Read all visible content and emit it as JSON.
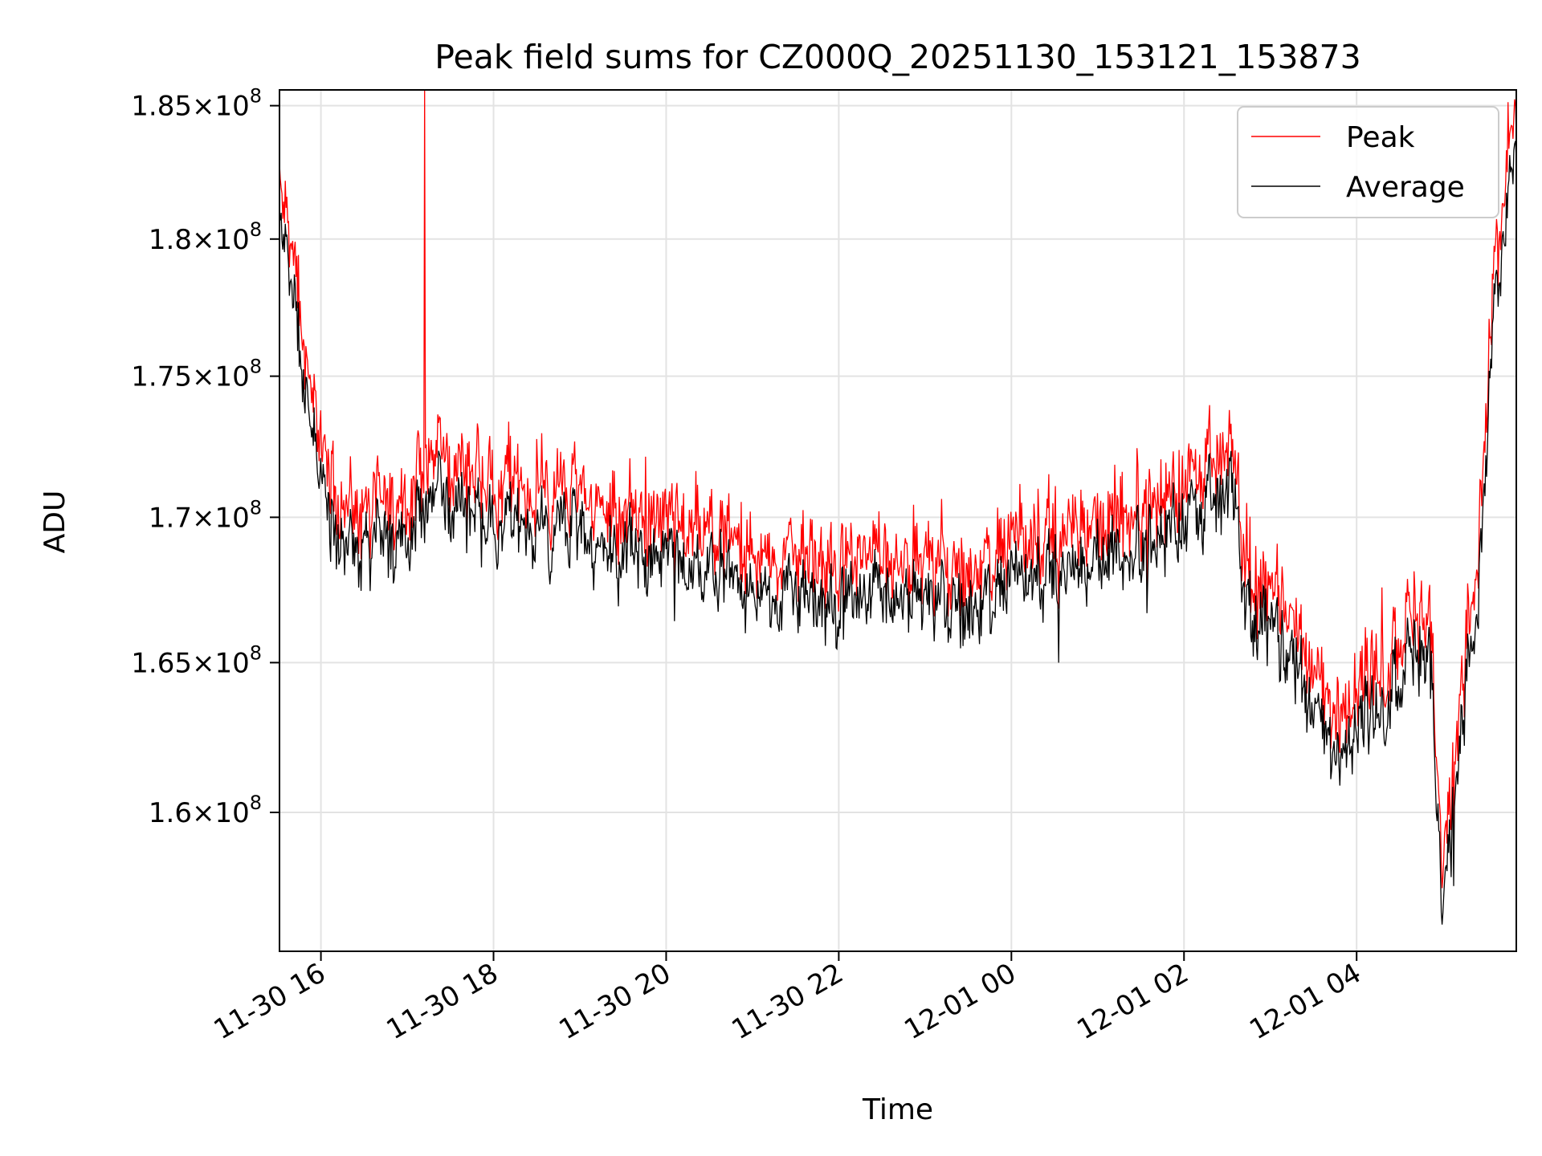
{
  "chart_data": {
    "type": "line",
    "title": "Peak field sums for CZ000Q_20251130_153121_153873",
    "xlabel": "Time",
    "ylabel": "ADU",
    "yscale": "log",
    "ylim": [
      155500000,
      185600000
    ],
    "xlim_hours": [
      15.52,
      29.85
    ],
    "x_ticks": [
      {
        "hour": 16,
        "label": "11-30 16"
      },
      {
        "hour": 18,
        "label": "11-30 18"
      },
      {
        "hour": 20,
        "label": "11-30 20"
      },
      {
        "hour": 22,
        "label": "11-30 22"
      },
      {
        "hour": 24,
        "label": "12-01 00"
      },
      {
        "hour": 26,
        "label": "12-01 02"
      },
      {
        "hour": 28,
        "label": "12-01 04"
      }
    ],
    "y_ticks": [
      {
        "value": 160000000,
        "mantissa": "1.6",
        "exponent": "8"
      },
      {
        "value": 165000000,
        "mantissa": "1.65",
        "exponent": "8"
      },
      {
        "value": 170000000,
        "mantissa": "1.7",
        "exponent": "8"
      },
      {
        "value": 175000000,
        "mantissa": "1.75",
        "exponent": "8"
      },
      {
        "value": 180000000,
        "mantissa": "1.8",
        "exponent": "8"
      },
      {
        "value": 185000000,
        "mantissa": "1.85",
        "exponent": "8"
      }
    ],
    "times_label": "×10",
    "grid": true,
    "legend_position": "top-right",
    "series": [
      {
        "name": "Peak",
        "color": "#ff0000"
      },
      {
        "name": "Average",
        "color": "#000000"
      }
    ],
    "trend_hours": [
      15.52,
      15.65,
      15.8,
      15.95,
      16.2,
      16.5,
      17.0,
      17.3,
      17.6,
      18.0,
      18.5,
      19.0,
      19.5,
      20.0,
      20.5,
      21.0,
      21.5,
      22.0,
      22.5,
      23.0,
      23.5,
      24.0,
      24.5,
      25.0,
      25.5,
      25.9,
      26.35,
      26.55,
      26.75,
      27.0,
      27.4,
      27.7,
      28.0,
      28.3,
      28.6,
      28.85,
      29.0,
      29.2,
      29.4,
      29.6,
      29.85
    ],
    "trend_values": [
      181000000,
      178500000,
      175000000,
      171500000,
      169500000,
      169000000,
      169500000,
      171000000,
      170500000,
      170000000,
      169800000,
      169500000,
      168800000,
      168500000,
      168000000,
      167500000,
      167500000,
      167000000,
      167600000,
      167000000,
      166800000,
      167800000,
      168200000,
      168500000,
      169000000,
      169800000,
      170200000,
      171200000,
      166800000,
      166500000,
      164000000,
      162300000,
      163000000,
      163500000,
      165500000,
      165000000,
      157000000,
      162000000,
      167000000,
      178000000,
      183500000
    ],
    "peak_offset": 700000,
    "spike": {
      "hour": 17.2,
      "value": 185600000,
      "series": "Peak"
    }
  }
}
